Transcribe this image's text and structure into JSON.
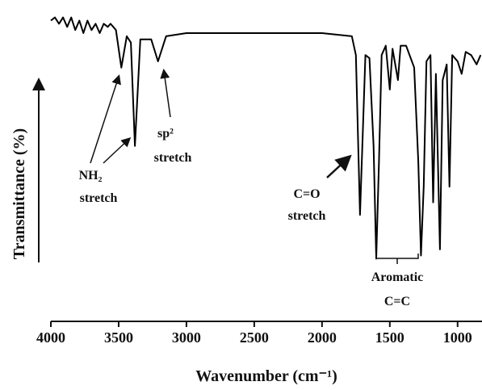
{
  "chart_data": {
    "type": "line",
    "x_label": "Wavenumber (cm⁻¹)",
    "y_label": "Transmittance (%)",
    "xlim": [
      4000,
      820
    ],
    "xticks": [
      4000,
      3500,
      3000,
      2500,
      2000,
      1500,
      1000
    ],
    "ylim": [
      0,
      100
    ],
    "color": "#000000",
    "annotations": [
      [
        "NH₂",
        "stretch"
      ],
      [
        "sp²",
        "stretch"
      ],
      [
        "C=O",
        "stretch"
      ],
      [
        "Aromatic",
        "C=C"
      ]
    ],
    "x": [
      4000,
      3970,
      3940,
      3910,
      3880,
      3850,
      3820,
      3790,
      3760,
      3730,
      3700,
      3670,
      3640,
      3610,
      3580,
      3560,
      3520,
      3480,
      3440,
      3410,
      3380,
      3340,
      3300,
      3260,
      3210,
      3150,
      3000,
      2500,
      2000,
      1780,
      1750,
      1720,
      1680,
      1650,
      1620,
      1600,
      1580,
      1560,
      1530,
      1500,
      1480,
      1440,
      1420,
      1380,
      1320,
      1290,
      1270,
      1250,
      1230,
      1200,
      1180,
      1160,
      1130,
      1110,
      1080,
      1060,
      1040,
      1000,
      970,
      940,
      900,
      860,
      830
    ],
    "values": [
      96,
      97,
      95,
      97,
      94,
      97,
      93,
      96,
      92,
      96,
      93,
      95,
      92,
      95,
      94,
      95,
      93,
      81,
      91,
      89,
      56,
      90,
      90,
      90,
      83,
      91,
      92,
      92,
      92,
      91,
      85,
      34,
      85,
      84,
      56,
      20,
      51,
      85,
      88,
      74,
      87,
      77,
      88,
      88,
      81,
      51,
      21,
      43,
      83,
      85,
      38,
      79,
      23,
      77,
      82,
      43,
      85,
      83,
      79,
      86,
      85,
      82,
      85
    ]
  }
}
